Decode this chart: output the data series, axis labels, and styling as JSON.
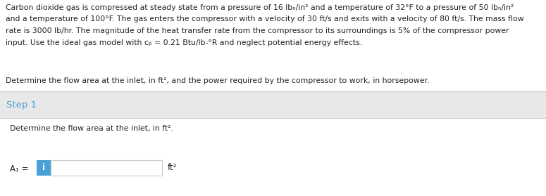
{
  "background_color": "#e8e8e8",
  "top_section_bg": "#ffffff",
  "bottom_section_bg": "#ffffff",
  "step_section_bg": "#e8e8e8",
  "step_text": "Step 1",
  "step_color": "#4a9fd4",
  "paragraph1_lines": [
    "Carbon dioxide gas is compressed at steady state from a pressure of 16 lbₙ/in² and a temperature of 32°F to a pressure of 50 lbₙ/in²",
    "and a temperature of 100°F. The gas enters the compressor with a velocity of 30 ft/s and exits with a velocity of 80 ft/s. The mass flow",
    "rate is 3000 lb/hr. The magnitude of the heat transfer rate from the compressor to its surroundings is 5% of the compressor power",
    "input. Use the ideal gas model with cₚ = 0.21 Btu/lb-°R and neglect potential energy effects."
  ],
  "paragraph2": "Determine the flow area at the inlet, in ft², and the power required by the compressor to work, in horsepower.",
  "step_question": "Determine the flow area at the inlet, in ft².",
  "label_text": "A₁ =",
  "subscript_1": "1",
  "unit_text": "ft²",
  "input_box_color": "#4a9fd4",
  "input_box_text": "i",
  "separator_color": "#cccccc",
  "text_color": "#222222",
  "font_size_body": 7.8,
  "font_size_step": 9.5,
  "font_size_label": 8.5
}
